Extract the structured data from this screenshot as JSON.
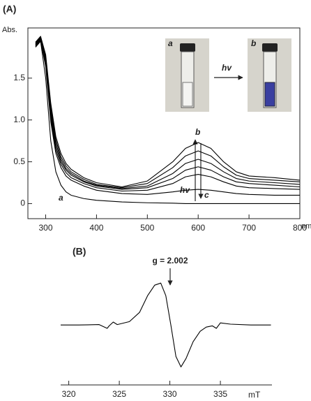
{
  "chart_data": [
    {
      "type": "line",
      "panel_label": "(A)",
      "y_label": "Abs.",
      "x_label": "nm",
      "x": [
        280,
        290,
        300,
        310,
        320,
        330,
        340,
        350,
        375,
        400,
        450,
        500,
        550,
        575,
        600,
        625,
        650,
        675,
        700,
        750,
        800
      ],
      "series": [
        {
          "color": "#000000",
          "values": [
            1.93,
            2.0,
            1.78,
            1.2,
            0.8,
            0.6,
            0.48,
            0.41,
            0.31,
            0.25,
            0.2,
            0.27,
            0.5,
            0.66,
            0.73,
            0.66,
            0.5,
            0.38,
            0.33,
            0.31,
            0.28
          ]
        },
        {
          "color": "#000000",
          "values": [
            1.92,
            1.99,
            1.75,
            1.15,
            0.76,
            0.56,
            0.45,
            0.38,
            0.29,
            0.23,
            0.19,
            0.24,
            0.43,
            0.57,
            0.63,
            0.57,
            0.44,
            0.34,
            0.3,
            0.28,
            0.26
          ]
        },
        {
          "color": "#000000",
          "values": [
            1.91,
            1.98,
            1.72,
            1.1,
            0.72,
            0.53,
            0.42,
            0.36,
            0.27,
            0.22,
            0.18,
            0.21,
            0.36,
            0.48,
            0.53,
            0.48,
            0.38,
            0.3,
            0.27,
            0.25,
            0.23
          ]
        },
        {
          "color": "#000000",
          "values": [
            1.9,
            1.97,
            1.7,
            1.06,
            0.68,
            0.5,
            0.4,
            0.34,
            0.26,
            0.21,
            0.17,
            0.19,
            0.3,
            0.4,
            0.44,
            0.4,
            0.32,
            0.26,
            0.24,
            0.22,
            0.2
          ]
        },
        {
          "color": "#000000",
          "values": [
            1.89,
            1.96,
            1.67,
            1.02,
            0.64,
            0.47,
            0.37,
            0.31,
            0.24,
            0.19,
            0.15,
            0.16,
            0.24,
            0.32,
            0.35,
            0.32,
            0.26,
            0.21,
            0.19,
            0.18,
            0.17
          ]
        },
        {
          "color": "#000000",
          "values": [
            1.88,
            1.95,
            1.64,
            0.98,
            0.6,
            0.43,
            0.33,
            0.28,
            0.21,
            0.16,
            0.12,
            0.11,
            0.14,
            0.16,
            0.17,
            0.16,
            0.14,
            0.12,
            0.11,
            0.1,
            0.1
          ]
        },
        {
          "color": "#000000",
          "values": [
            1.87,
            1.94,
            1.5,
            0.75,
            0.38,
            0.22,
            0.14,
            0.1,
            0.06,
            0.04,
            0.02,
            0.01,
            0.005,
            0,
            0,
            0,
            0,
            0,
            0,
            0,
            0
          ]
        }
      ],
      "xlim": [
        265,
        800
      ],
      "ylim": [
        -0.18,
        2.1
      ],
      "xticks": [
        300,
        400,
        500,
        600,
        700,
        800
      ],
      "yticks": [
        0,
        0.5,
        {
          "value": 1,
          "label": "1.0"
        },
        1.5
      ],
      "annotations": {
        "a": "a",
        "b": "b",
        "c": "c",
        "hv": "hv"
      },
      "inset": {
        "left_label": "a",
        "right_label": "b",
        "arrow_label": "hv"
      }
    },
    {
      "type": "line",
      "panel_label": "(B)",
      "x_label": "mT",
      "annotation": "g = 2.002",
      "x": [
        319.2,
        321,
        323,
        323.8,
        324,
        324.4,
        324.8,
        326,
        327,
        327.8,
        328.5,
        329.1,
        329.6,
        330.1,
        330.6,
        331.1,
        331.6,
        332.3,
        333,
        333.6,
        334.2,
        334.6,
        335,
        336,
        338,
        340
      ],
      "series": [
        {
          "color": "#000000",
          "values": [
            0,
            0,
            0.01,
            -0.08,
            -0.02,
            0.07,
            0.01,
            0.08,
            0.3,
            0.7,
            0.95,
            1.0,
            0.7,
            0,
            -0.75,
            -1.0,
            -0.8,
            -0.4,
            -0.15,
            -0.05,
            -0.02,
            -0.08,
            0.05,
            0.02,
            0,
            0
          ]
        }
      ],
      "xlim": [
        319.2,
        340.1
      ],
      "ylim": [
        -1.43,
        1.42
      ],
      "xticks": [
        320,
        325,
        330,
        335
      ]
    }
  ]
}
